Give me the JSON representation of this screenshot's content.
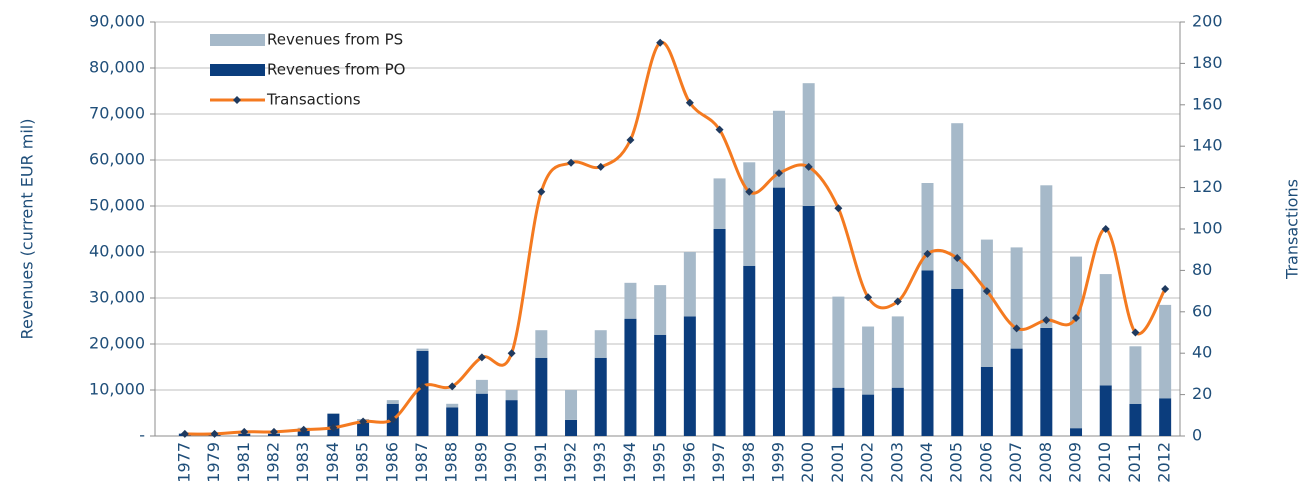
{
  "chart_data": {
    "type": "bar",
    "y_label": "Revenues (current EUR mil)",
    "y2_label": "Transactions",
    "categories": [
      "1977",
      "1979",
      "1981",
      "1982",
      "1983",
      "1984",
      "1985",
      "1986",
      "1987",
      "1988",
      "1989",
      "1990",
      "1991",
      "1992",
      "1993",
      "1994",
      "1995",
      "1996",
      "1997",
      "1998",
      "1999",
      "2000",
      "2001",
      "2002",
      "2003",
      "2004",
      "2005",
      "2006",
      "2007",
      "2008",
      "2009",
      "2010",
      "2011",
      "2012"
    ],
    "series": [
      {
        "name": "Revenues from PS",
        "type": "bar",
        "color": "#a6b9c9",
        "values": [
          100,
          100,
          200,
          200,
          300,
          200,
          700,
          800,
          500,
          800,
          3000,
          2200,
          6000,
          6500,
          6000,
          7800,
          10800,
          14000,
          11000,
          22500,
          16700,
          26700,
          19800,
          14800,
          15500,
          19000,
          36000,
          27700,
          22000,
          31000,
          37300,
          24200,
          12500,
          20300
        ]
      },
      {
        "name": "Revenues from PO",
        "type": "bar",
        "color": "#0b3d7d",
        "values": [
          500,
          300,
          500,
          500,
          1500,
          4800,
          3000,
          7000,
          18500,
          6200,
          9200,
          7800,
          17000,
          3500,
          17000,
          25500,
          22000,
          26000,
          45000,
          37000,
          54000,
          50000,
          10500,
          9000,
          10500,
          36000,
          32000,
          15000,
          19000,
          23500,
          1700,
          11000,
          7000,
          8200
        ]
      },
      {
        "name": "Transactions",
        "type": "line",
        "axis": "y2",
        "color": "#f47a20",
        "marker_color": "#1f3a5f",
        "values": [
          1,
          1,
          2,
          2,
          3,
          4,
          7,
          8,
          24,
          24,
          38,
          40,
          118,
          132,
          130,
          143,
          190,
          161,
          148,
          118,
          127,
          130,
          110,
          67,
          65,
          88,
          86,
          70,
          52,
          56,
          57,
          100,
          50,
          71
        ]
      }
    ],
    "ylim": [
      0,
      90000
    ],
    "yticks": [
      {
        "value": 0,
        "label": "-"
      },
      {
        "value": 10000,
        "label": "10,000"
      },
      {
        "value": 20000,
        "label": "20,000"
      },
      {
        "value": 30000,
        "label": "30,000"
      },
      {
        "value": 40000,
        "label": "40,000"
      },
      {
        "value": 50000,
        "label": "50,000"
      },
      {
        "value": 60000,
        "label": "60,000"
      },
      {
        "value": 70000,
        "label": "70,000"
      },
      {
        "value": 80000,
        "label": "80,000"
      },
      {
        "value": 90000,
        "label": "90,000"
      }
    ],
    "y2lim": [
      0,
      200
    ],
    "y2ticks": [
      0,
      20,
      40,
      60,
      80,
      100,
      120,
      140,
      160,
      180,
      200
    ],
    "grid": true,
    "legend": "top-left"
  }
}
